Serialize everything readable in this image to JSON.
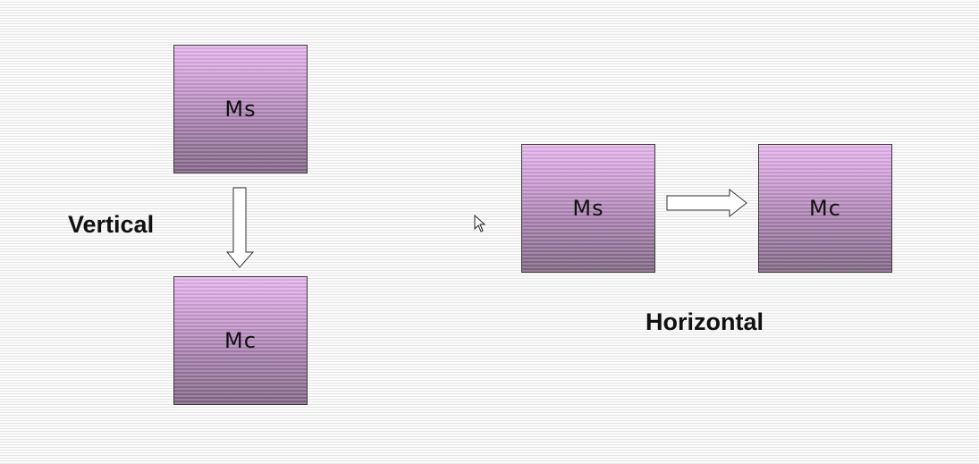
{
  "vertical": {
    "label": "Vertical",
    "source_box": "Ms",
    "target_box": "Mc"
  },
  "horizontal": {
    "label": "Horizontal",
    "source_box": "Ms",
    "target_box": "Mc"
  },
  "colors": {
    "box_top": "#e7b4ee",
    "box_bottom": "#806684",
    "outline": "#3a3a3a"
  }
}
